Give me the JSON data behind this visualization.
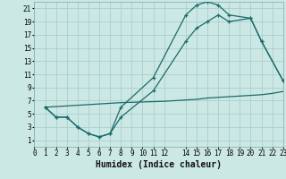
{
  "xlabel": "Humidex (Indice chaleur)",
  "bg_color": "#cce8e4",
  "grid_color": "#aacece",
  "line_color": "#1a6b6b",
  "line1_x": [
    1,
    2,
    3,
    4,
    5,
    6,
    7,
    8,
    11,
    14,
    15,
    16,
    17,
    18,
    20,
    21,
    23
  ],
  "line1_y": [
    6,
    4.5,
    4.5,
    3,
    2,
    1.5,
    2,
    6,
    10.5,
    20,
    21.5,
    22,
    21.5,
    20,
    19.5,
    16,
    10
  ],
  "line2_x": [
    1,
    2,
    3,
    4,
    5,
    6,
    7,
    8,
    11,
    14,
    15,
    16,
    17,
    18,
    20,
    21,
    23
  ],
  "line2_y": [
    6,
    4.5,
    4.5,
    3,
    2,
    1.5,
    2,
    4.5,
    8.5,
    16,
    18,
    19,
    20,
    19,
    19.5,
    16,
    10
  ],
  "line3_x": [
    1,
    2,
    3,
    4,
    5,
    6,
    7,
    8,
    9,
    10,
    11,
    12,
    14,
    15,
    16,
    17,
    18,
    19,
    20,
    21,
    22,
    23
  ],
  "line3_y": [
    6.0,
    6.1,
    6.2,
    6.3,
    6.4,
    6.5,
    6.6,
    6.7,
    6.75,
    6.8,
    6.85,
    6.9,
    7.1,
    7.2,
    7.4,
    7.5,
    7.6,
    7.7,
    7.8,
    7.9,
    8.1,
    8.4
  ],
  "xlim": [
    0,
    23
  ],
  "ylim": [
    0,
    22
  ],
  "xticks": [
    0,
    1,
    2,
    3,
    4,
    5,
    6,
    7,
    8,
    9,
    10,
    11,
    12,
    14,
    15,
    16,
    17,
    18,
    19,
    20,
    21,
    22,
    23
  ],
  "yticks": [
    1,
    3,
    5,
    7,
    9,
    11,
    13,
    15,
    17,
    19,
    21
  ],
  "tick_fontsize": 5.5,
  "xlabel_fontsize": 7
}
